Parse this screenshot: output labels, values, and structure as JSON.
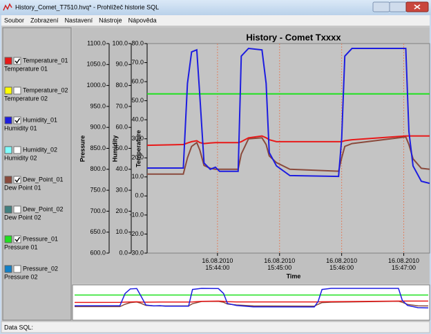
{
  "window": {
    "title": "History_Comet_T7510.hvq* - Prohlížeč historie SQL"
  },
  "menu": [
    "Soubor",
    "Zobrazení",
    "Nastavení",
    "Nástroje",
    "Nápověda"
  ],
  "status": "Data SQL:",
  "chart_data": {
    "type": "line",
    "title": "History - Comet Txxxx",
    "xlabel": "Time",
    "ylabel": "Temperature",
    "y2label": "Humidity",
    "y3label": "Pressure",
    "x": [
      "15:42:52",
      "15:43:27",
      "15:43:31",
      "15:43:35",
      "15:43:40",
      "15:43:43",
      "15:43:47",
      "15:43:53",
      "15:43:58",
      "15:44:02",
      "15:44:10",
      "15:44:20",
      "15:44:23",
      "15:44:30",
      "15:44:43",
      "15:44:47",
      "15:44:50",
      "15:44:57",
      "15:45:10",
      "15:45:57",
      "15:46:00",
      "15:46:03",
      "15:46:10",
      "15:47:02",
      "15:47:05",
      "15:47:09",
      "15:47:17",
      "15:47:25"
    ],
    "xlim": [
      "15:42:52",
      "15:47:25"
    ],
    "xticks": [
      {
        "value": "15:44:00",
        "label": "16.08.2010\n15:44:00"
      },
      {
        "value": "15:45:00",
        "label": "16.08.2010\n15:45:00"
      },
      {
        "value": "15:46:00",
        "label": "16.08.2010\n15:46:00"
      },
      {
        "value": "15:47:00",
        "label": "16.08.2010\n15:47:00"
      }
    ],
    "ylim": [
      -30,
      80
    ],
    "yticks": [
      {
        "value": 80,
        "label": "80.0"
      },
      {
        "value": 70,
        "label": "70.0"
      },
      {
        "value": 60,
        "label": "60.0"
      },
      {
        "value": 50,
        "label": "50.0"
      },
      {
        "value": 40,
        "label": "40.0"
      },
      {
        "value": 30,
        "label": "30.0"
      },
      {
        "value": 20,
        "label": "20.0"
      },
      {
        "value": 10,
        "label": "10.0"
      },
      {
        "value": 0,
        "label": "0.0"
      },
      {
        "value": -10,
        "label": "-10.0"
      },
      {
        "value": -20,
        "label": "-20.0"
      },
      {
        "value": -30,
        "label": "-30.0"
      }
    ],
    "y2lim": [
      0,
      100
    ],
    "y2ticks": [
      {
        "value": 100,
        "label": "100.0"
      },
      {
        "value": 90,
        "label": "90.0"
      },
      {
        "value": 80,
        "label": "80.0"
      },
      {
        "value": 70,
        "label": "70.0"
      },
      {
        "value": 60,
        "label": "60.0"
      },
      {
        "value": 50,
        "label": "50.0"
      },
      {
        "value": 40,
        "label": "40.0"
      },
      {
        "value": 30,
        "label": "30.0"
      },
      {
        "value": 20,
        "label": "20.0"
      },
      {
        "value": 10,
        "label": "10.0"
      },
      {
        "value": 0,
        "label": "0.0"
      }
    ],
    "y3lim": [
      600,
      1100
    ],
    "y3ticks": [
      {
        "value": 1100,
        "label": "1100.0"
      },
      {
        "value": 1050,
        "label": "1050.0"
      },
      {
        "value": 1000,
        "label": "1000.0"
      },
      {
        "value": 950,
        "label": "950.0"
      },
      {
        "value": 900,
        "label": "900.0"
      },
      {
        "value": 850,
        "label": "850.0"
      },
      {
        "value": 800,
        "label": "800.0"
      },
      {
        "value": 750,
        "label": "750.0"
      },
      {
        "value": 700,
        "label": "700.0"
      },
      {
        "value": 650,
        "label": "650.0"
      },
      {
        "value": 600,
        "label": "600.0"
      }
    ],
    "grid": true,
    "series": [
      {
        "name": "Temperature_01",
        "description": "Temperature 01",
        "color": "#e81818",
        "checked": true,
        "axis": "y",
        "values": [
          26.6,
          27.0,
          27.8,
          28.5,
          29.0,
          28.0,
          27.5,
          27.8,
          28.0,
          28.0,
          28.0,
          28.0,
          28.5,
          30.5,
          31.5,
          30.5,
          29.5,
          28.5,
          28.5,
          28.5,
          28.5,
          29.0,
          29.5,
          31.5,
          31.5,
          31.5,
          31.5,
          31.5
        ]
      },
      {
        "name": "Temperature_02",
        "description": "Temperature 02",
        "color": "#ffff00",
        "checked": false,
        "axis": "y"
      },
      {
        "name": "Humidity_01",
        "description": "Humidity 01",
        "color": "#1c1ce0",
        "checked": true,
        "axis": "y2",
        "values": [
          40.6,
          40.6,
          81,
          96,
          97,
          74.6,
          43,
          40,
          41,
          39,
          39,
          39,
          94,
          97.7,
          97,
          81,
          48,
          41.6,
          37,
          36.6,
          54.8,
          94,
          97.7,
          97.7,
          58,
          41.6,
          34.3,
          33.3
        ]
      },
      {
        "name": "Humidity_02",
        "description": "Humidity 02",
        "color": "#80ffff",
        "checked": false,
        "axis": "y2"
      },
      {
        "name": "Dew_Point_01",
        "description": "Dew Point 01",
        "color": "#8a4a3c",
        "checked": true,
        "axis": "y",
        "values": [
          11.5,
          11.5,
          20,
          26,
          28,
          24,
          16,
          14.5,
          14,
          14,
          14,
          14,
          22,
          30,
          30.5,
          27,
          21,
          17.5,
          14,
          13,
          20,
          26,
          27.5,
          31,
          27,
          19.5,
          14.5,
          14
        ]
      },
      {
        "name": "Dew_Point_02",
        "description": "Dew Point 02",
        "color": "#408080",
        "checked": false,
        "axis": "y"
      },
      {
        "name": "Pressure_01",
        "description": "Pressure 01",
        "color": "#20e020",
        "checked": true,
        "axis": "y3",
        "values": [
          980,
          980,
          980,
          980,
          980,
          980,
          980,
          980,
          980,
          980,
          980,
          980,
          980,
          980,
          980,
          980,
          980,
          980,
          980,
          980,
          980,
          980,
          980,
          980,
          980,
          980,
          980,
          980
        ]
      },
      {
        "name": "Pressure_02",
        "description": "Pressure 02",
        "color": "#1080c8",
        "checked": false,
        "axis": "y3"
      }
    ]
  }
}
